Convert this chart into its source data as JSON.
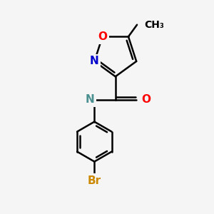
{
  "background_color": "#f5f5f5",
  "bond_color": "#000000",
  "atom_colors": {
    "O": "#ff0000",
    "N_ring": "#0000cc",
    "N_amide": "#4a9090",
    "Br": "#cc8800",
    "C": "#000000"
  },
  "font_size": 11,
  "line_width": 1.8,
  "figsize": [
    3.0,
    3.0
  ],
  "dpi": 100,
  "xlim": [
    0,
    10
  ],
  "ylim": [
    0,
    10
  ]
}
